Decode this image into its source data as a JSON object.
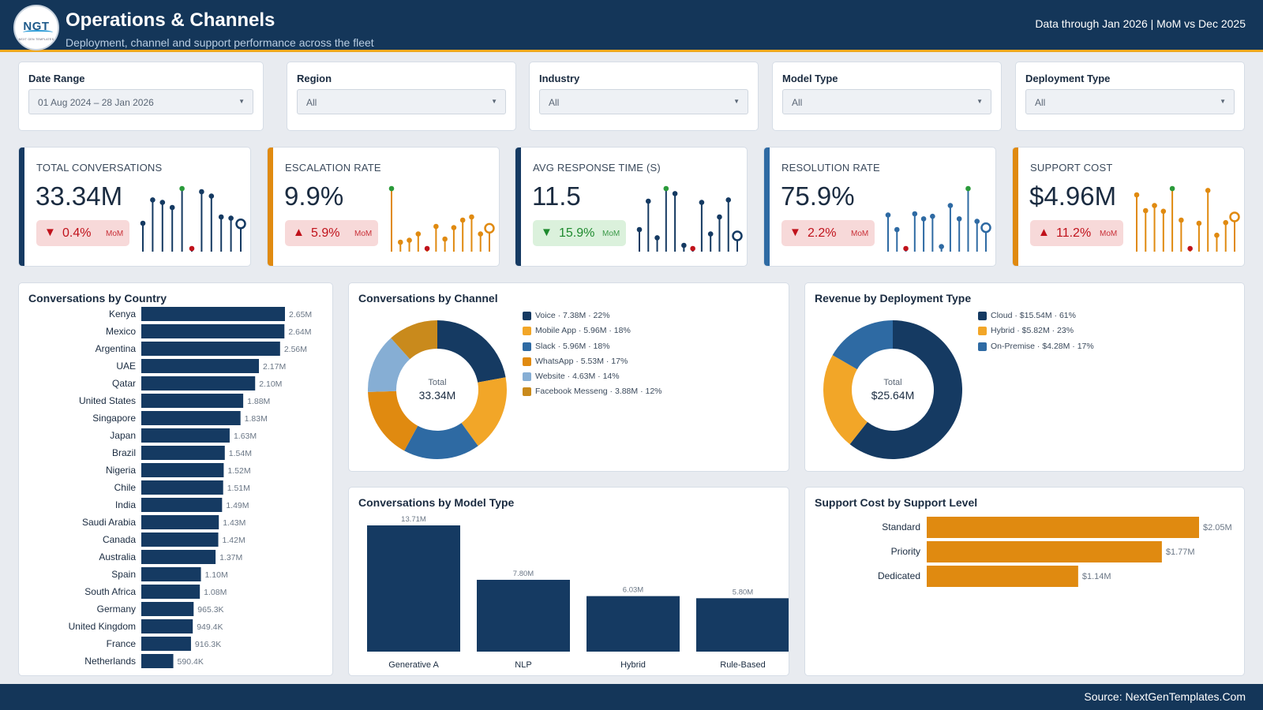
{
  "header": {
    "logo_text": "NGT",
    "logo_subtext": "NEXT GEN TEMPLATES",
    "title": "Operations & Channels",
    "subtitle": "Deployment, channel and support performance across the fleet",
    "data_note": "Data through Jan 2026 | MoM vs Dec 2025"
  },
  "filters": [
    {
      "label": "Date Range",
      "value": "01 Aug 2024 – 28 Jan 2026"
    },
    {
      "label": "Region",
      "value": "All"
    },
    {
      "label": "Industry",
      "value": "All"
    },
    {
      "label": "Model Type",
      "value": "All"
    },
    {
      "label": "Deployment Type",
      "value": "All"
    }
  ],
  "kpis": [
    {
      "title": "TOTAL CONVERSATIONS",
      "value": "33.34M",
      "direction": "down",
      "arrow": "▼",
      "change": "0.4%",
      "change_label": "MoM",
      "status": "bad",
      "color": "#153a62",
      "spark": [
        0.45,
        0.82,
        0.78,
        0.7,
        1.0,
        0.05,
        0.95,
        0.88,
        0.55,
        0.53,
        0.44
      ]
    },
    {
      "title": "ESCALATION RATE",
      "value": "9.9%",
      "direction": "up",
      "arrow": "▲",
      "change": "5.9%",
      "change_label": "MoM",
      "status": "bad",
      "color": "#e08a10",
      "spark": [
        1.0,
        0.15,
        0.18,
        0.28,
        0.05,
        0.4,
        0.2,
        0.38,
        0.5,
        0.55,
        0.28,
        0.37
      ]
    },
    {
      "title": "AVG RESPONSE TIME (S)",
      "value": "11.5",
      "direction": "down",
      "arrow": "▼",
      "change": "15.9%",
      "change_label": "MoM",
      "status": "good",
      "color": "#153a62",
      "spark": [
        0.35,
        0.8,
        0.22,
        1.0,
        0.92,
        0.1,
        0.05,
        0.78,
        0.28,
        0.55,
        0.82,
        0.25
      ]
    },
    {
      "title": "RESOLUTION RATE",
      "value": "75.9%",
      "direction": "down",
      "arrow": "▼",
      "change": "2.2%",
      "change_label": "MoM",
      "status": "bad",
      "color": "#2e6aa3",
      "spark": [
        0.58,
        0.35,
        0.05,
        0.6,
        0.52,
        0.56,
        0.08,
        0.73,
        0.52,
        1.0,
        0.48,
        0.38
      ]
    },
    {
      "title": "SUPPORT COST",
      "value": "$4.96M",
      "direction": "up",
      "arrow": "▲",
      "change": "11.2%",
      "change_label": "MoM",
      "status": "bad",
      "color": "#e08a10",
      "spark": [
        0.9,
        0.65,
        0.73,
        0.64,
        1.0,
        0.5,
        0.05,
        0.45,
        0.97,
        0.26,
        0.46,
        0.55
      ]
    }
  ],
  "country_panel": {
    "title": "Conversations by Country",
    "chart_data": {
      "type": "bar",
      "orientation": "horizontal",
      "categories": [
        "Kenya",
        "Mexico",
        "Argentina",
        "UAE",
        "Qatar",
        "United States",
        "Singapore",
        "Japan",
        "Brazil",
        "Nigeria",
        "Chile",
        "India",
        "Saudi Arabia",
        "Canada",
        "Australia",
        "Spain",
        "South Africa",
        "Germany",
        "United Kingdom",
        "France",
        "Netherlands"
      ],
      "values": [
        2650000,
        2640000,
        2560000,
        2170000,
        2100000,
        1880000,
        1830000,
        1630000,
        1540000,
        1520000,
        1510000,
        1490000,
        1430000,
        1420000,
        1370000,
        1100000,
        1080000,
        965300,
        949400,
        916300,
        590400
      ],
      "data_labels": [
        "2.65M",
        "2.64M",
        "2.56M",
        "2.17M",
        "2.10M",
        "1.88M",
        "1.83M",
        "1.63M",
        "1.54M",
        "1.52M",
        "1.51M",
        "1.49M",
        "1.43M",
        "1.42M",
        "1.37M",
        "1.10M",
        "1.08M",
        "965.3K",
        "949.4K",
        "916.3K",
        "590.4K"
      ],
      "color": "#153a62"
    }
  },
  "channel_panel": {
    "title": "Conversations by Channel",
    "center_label": "Total",
    "center_value": "33.34M",
    "chart_data": {
      "type": "pie",
      "labels": [
        "Voice",
        "Mobile App",
        "Slack",
        "WhatsApp",
        "Website",
        "Facebook Messeng"
      ],
      "values": [
        7.38,
        5.96,
        5.96,
        5.53,
        4.63,
        3.88
      ],
      "legend_text": [
        "Voice · 7.38M · 22%",
        "Mobile App · 5.96M · 18%",
        "Slack · 5.96M · 18%",
        "WhatsApp · 5.53M · 17%",
        "Website · 4.63M · 14%",
        "Facebook Messeng · 3.88M · 12%"
      ],
      "colors": [
        "#153a62",
        "#f2a628",
        "#2e6aa3",
        "#e08a10",
        "#86aed4",
        "#c98a1c"
      ]
    }
  },
  "deployment_panel": {
    "title": "Revenue by Deployment Type",
    "center_label": "Total",
    "center_value": "$25.64M",
    "chart_data": {
      "type": "pie",
      "labels": [
        "Cloud",
        "Hybrid",
        "On-Premise"
      ],
      "values": [
        15.54,
        5.82,
        4.28
      ],
      "legend_text": [
        "Cloud · $15.54M · 61%",
        "Hybrid · $5.82M · 23%",
        "On-Premise · $4.28M · 17%"
      ],
      "colors": [
        "#153a62",
        "#f2a628",
        "#2e6aa3"
      ]
    }
  },
  "model_panel": {
    "title": "Conversations by Model Type",
    "chart_data": {
      "type": "bar",
      "categories": [
        "Generative A",
        "NLP",
        "Hybrid",
        "Rule-Based"
      ],
      "values": [
        13.71,
        7.8,
        6.03,
        5.8
      ],
      "data_labels": [
        "13.71M",
        "7.80M",
        "6.03M",
        "5.80M"
      ],
      "color": "#153a62"
    }
  },
  "support_panel": {
    "title": "Support Cost by Support Level",
    "chart_data": {
      "type": "bar",
      "orientation": "horizontal",
      "categories": [
        "Standard",
        "Priority",
        "Dedicated"
      ],
      "values": [
        2.05,
        1.77,
        1.14
      ],
      "data_labels": [
        "$2.05M",
        "$1.77M",
        "$1.14M"
      ],
      "color": "#e08a10"
    }
  },
  "footer": {
    "source": "Source: NextGenTemplates.Com"
  }
}
